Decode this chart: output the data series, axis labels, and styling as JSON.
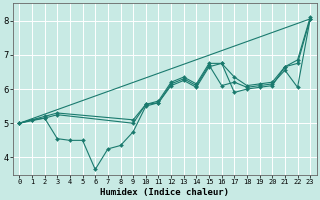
{
  "xlabel": "Humidex (Indice chaleur)",
  "xlim": [
    -0.5,
    23.5
  ],
  "ylim": [
    3.5,
    8.5
  ],
  "xticks": [
    0,
    1,
    2,
    3,
    4,
    5,
    6,
    7,
    8,
    9,
    10,
    11,
    12,
    13,
    14,
    15,
    16,
    17,
    18,
    19,
    20,
    21,
    22,
    23
  ],
  "yticks": [
    4,
    5,
    6,
    7,
    8
  ],
  "bg_color": "#c8eae4",
  "line_color": "#1a7a6e",
  "grid_color": "#ffffff",
  "lines": [
    {
      "x": [
        0,
        2,
        3,
        4,
        5,
        6,
        7,
        8,
        9,
        10,
        11,
        12,
        13,
        14,
        15,
        16,
        17,
        18,
        19,
        20,
        21,
        22,
        23
      ],
      "y": [
        5.0,
        5.15,
        4.55,
        4.5,
        4.5,
        3.65,
        4.25,
        4.35,
        4.75,
        5.5,
        5.6,
        6.1,
        6.25,
        6.05,
        6.65,
        6.75,
        5.9,
        6.0,
        6.05,
        6.1,
        6.65,
        6.75,
        8.05
      ],
      "markers": true
    },
    {
      "x": [
        0,
        1,
        2,
        3,
        9,
        10,
        11,
        12,
        13,
        14,
        15,
        16,
        17,
        18,
        19,
        20,
        21,
        22,
        23
      ],
      "y": [
        5.0,
        5.1,
        5.15,
        5.25,
        5.0,
        5.55,
        5.6,
        6.15,
        6.3,
        6.1,
        6.7,
        6.1,
        6.2,
        6.05,
        6.1,
        6.15,
        6.55,
        6.05,
        8.05
      ],
      "markers": true
    },
    {
      "x": [
        0,
        1,
        2,
        3,
        9,
        10,
        11,
        12,
        13,
        14,
        15,
        16,
        17,
        18,
        19,
        20,
        21,
        22,
        23
      ],
      "y": [
        5.0,
        5.1,
        5.2,
        5.3,
        5.1,
        5.55,
        5.65,
        6.2,
        6.35,
        6.15,
        6.75,
        6.75,
        6.35,
        6.1,
        6.15,
        6.2,
        6.65,
        6.85,
        8.1
      ],
      "markers": true
    },
    {
      "x": [
        0,
        23
      ],
      "y": [
        5.0,
        8.05
      ],
      "markers": false
    }
  ]
}
